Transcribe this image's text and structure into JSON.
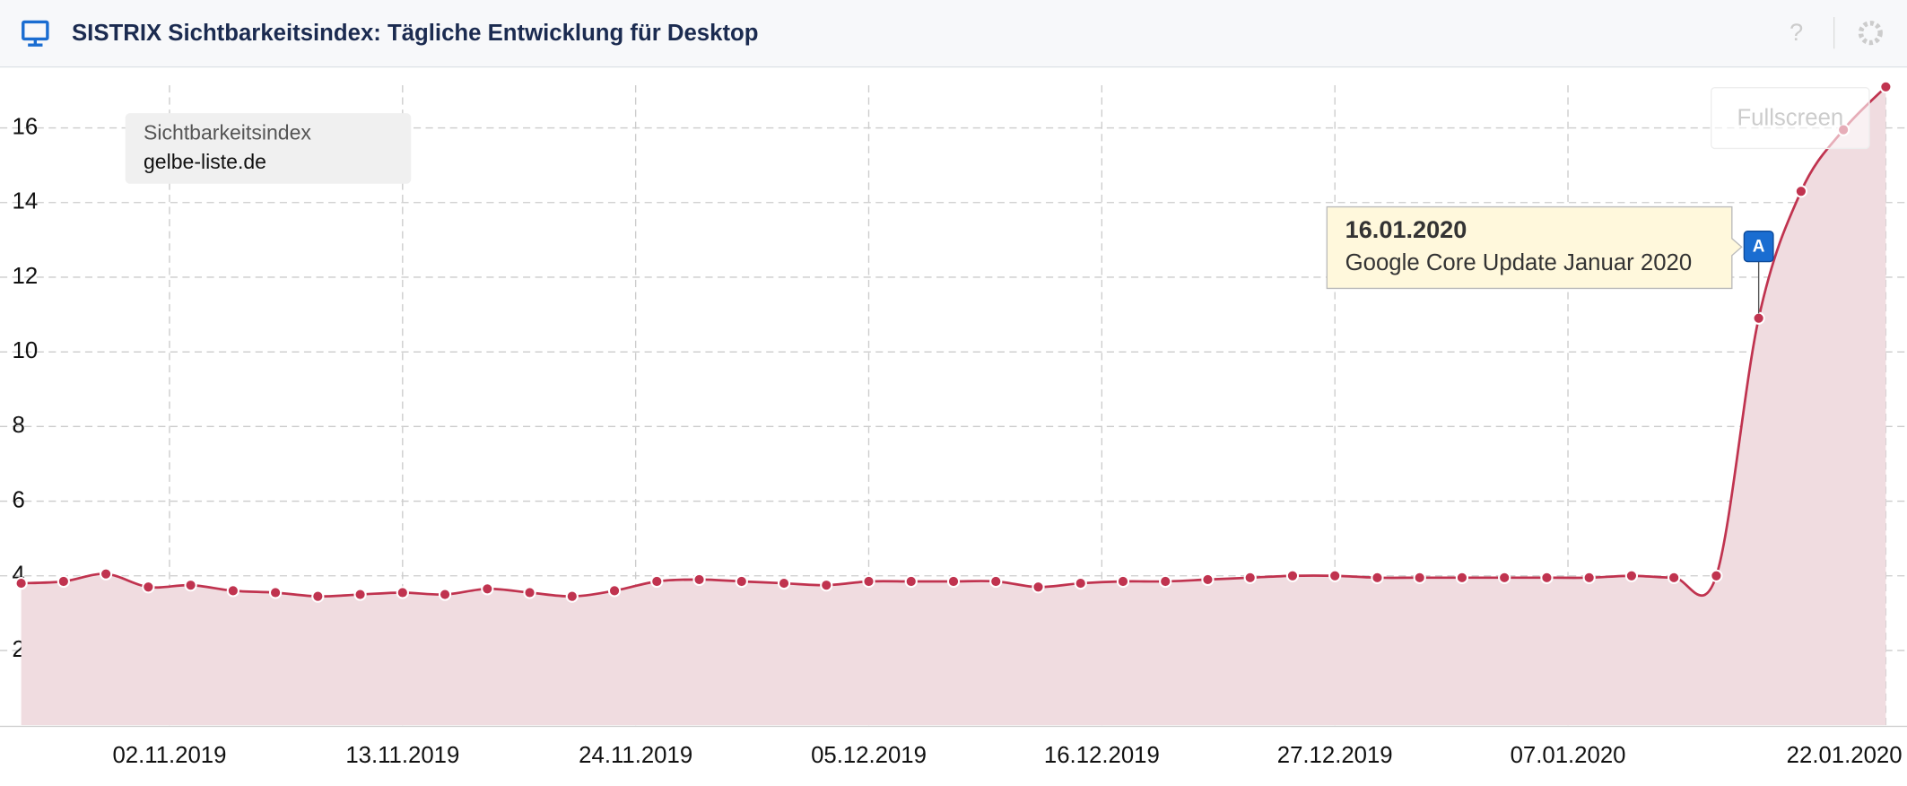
{
  "header": {
    "title": "SISTRIX Sichtbarkeitsindex: Tägliche Entwicklung für Desktop",
    "help": "?"
  },
  "fullscreen": "Fullscreen",
  "chart_data": {
    "type": "area",
    "legend_title": "Sichtbarkeitsindex",
    "legend": "top-left",
    "grid": true,
    "x": [
      "26.10.2019",
      "28.10.2019",
      "30.10.2019",
      "01.11.2019",
      "03.11.2019",
      "05.11.2019",
      "07.11.2019",
      "09.11.2019",
      "11.11.2019",
      "13.11.2019",
      "15.11.2019",
      "17.11.2019",
      "19.11.2019",
      "21.11.2019",
      "23.11.2019",
      "25.11.2019",
      "27.11.2019",
      "29.11.2019",
      "01.12.2019",
      "03.12.2019",
      "05.12.2019",
      "07.12.2019",
      "09.12.2019",
      "11.12.2019",
      "13.12.2019",
      "15.12.2019",
      "17.12.2019",
      "19.12.2019",
      "21.12.2019",
      "23.12.2019",
      "25.12.2019",
      "27.12.2019",
      "29.12.2019",
      "31.12.2019",
      "02.01.2020",
      "04.01.2020",
      "06.01.2020",
      "08.01.2020",
      "10.01.2020",
      "12.01.2020",
      "14.01.2020",
      "16.01.2020",
      "18.01.2020",
      "20.01.2020",
      "22.01.2020"
    ],
    "series": [
      {
        "name": "gelbe-liste.de",
        "color": "#c0334f",
        "fill": "#f0dce0",
        "values": [
          3.8,
          3.85,
          4.05,
          3.7,
          3.75,
          3.6,
          3.55,
          3.45,
          3.5,
          3.55,
          3.5,
          3.65,
          3.55,
          3.45,
          3.6,
          3.85,
          3.9,
          3.85,
          3.8,
          3.75,
          3.85,
          3.85,
          3.85,
          3.85,
          3.7,
          3.8,
          3.85,
          3.85,
          3.9,
          3.95,
          4.0,
          4.0,
          3.95,
          3.95,
          3.95,
          3.95,
          3.95,
          3.95,
          4.0,
          3.95,
          4.0,
          10.9,
          14.3,
          15.95,
          17.1
        ]
      }
    ],
    "xlim": [
      "25.10.2019",
      "23.01.2020"
    ],
    "xticks": [
      "02.11.2019",
      "13.11.2019",
      "24.11.2019",
      "05.12.2019",
      "16.12.2019",
      "27.12.2019",
      "07.01.2020",
      "22.01.2020"
    ],
    "ylim": [
      0,
      17.6
    ],
    "yticks": [
      2,
      4,
      6,
      8,
      10,
      12,
      14,
      16
    ],
    "annotations": [
      {
        "x": "16.01.2020",
        "marker": "A",
        "title": "16.01.2020",
        "text": "Google Core Update Januar 2020"
      }
    ]
  }
}
